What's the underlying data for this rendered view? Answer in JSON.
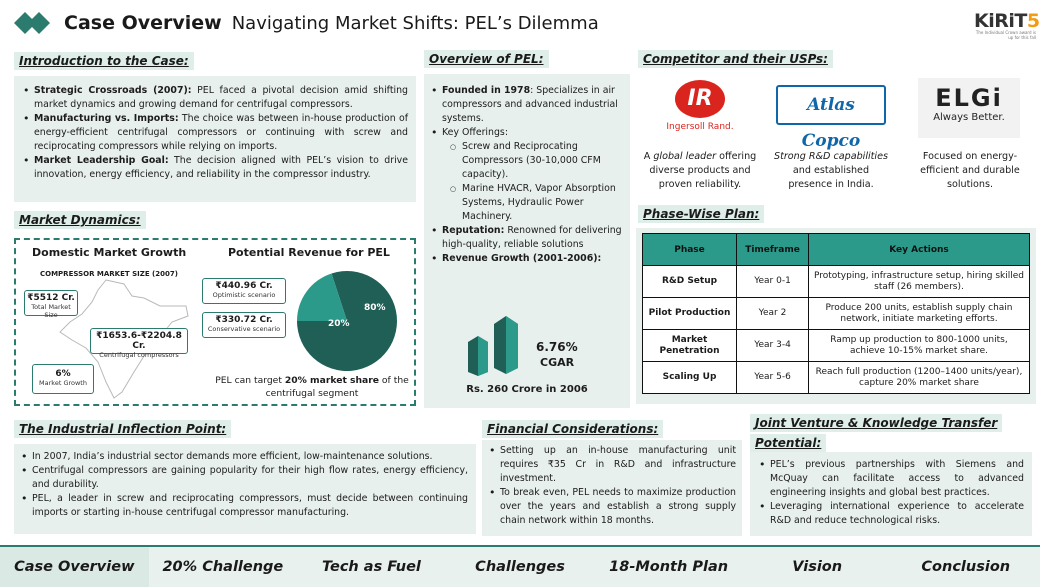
{
  "header": {
    "title_bold": "Case Overview",
    "title_rest": "Navigating Market Shifts: PEL’s Dilemma",
    "logo_text_a": "KiRiT",
    "logo_text_b": "5.0",
    "logo_tagline": "The Individual Crown award is up for this fall"
  },
  "intro": {
    "heading": "Introduction to the Case:",
    "items": [
      {
        "bold": "Strategic Crossroads (2007):",
        "text": " PEL faced a pivotal decision amid shifting market dynamics and growing demand for centrifugal compressors."
      },
      {
        "bold": "Manufacturing vs. Imports:",
        "text": " The choice was between in-house production of energy-efficient centrifugal compressors or continuing with screw and reciprocating compressors while relying on imports."
      },
      {
        "bold": "Market Leadership Goal:",
        "text": " The decision aligned with PEL’s vision to drive innovation, energy efficiency, and reliability in the compressor industry."
      }
    ]
  },
  "market": {
    "heading": "Market Dynamics:",
    "domestic_title": "Domestic Market Growth",
    "revenue_title": "Potential Revenue for PEL",
    "map_label": "COMPRESSOR MARKET SIZE (2007)",
    "total_value": "₹5512 Cr.",
    "total_label": "Total Market Size",
    "centrifugal_value": "₹1653.6-₹2204.8 Cr.",
    "centrifugal_label": "Centrifugal compressors",
    "growth_value": "6%",
    "growth_label": "Market Growth",
    "optimistic_value": "₹440.96 Cr.",
    "optimistic_label": "Optimistic scenario",
    "conservative_value": "₹330.72 Cr.",
    "conservative_label": "Conservative scenario",
    "pie_small": "20%",
    "pie_large": "80%",
    "pie_share": 0.2,
    "target_pre": "PEL can target ",
    "target_bold": "20% market share",
    "target_post": " of the centrifugal segment"
  },
  "overview": {
    "heading": "Overview of PEL:",
    "founded_bold": "Founded in 1978",
    "founded_text": ": Specializes in air compressors and advanced industrial systems.",
    "offerings_label": "Key Offerings:",
    "offerings": [
      "Screw and Reciprocating Compressors (30-10,000 CFM capacity).",
      "Marine HVACR, Vapor Absorption Systems, Hydraulic Power Machinery."
    ],
    "reputation_bold": "Reputation:",
    "reputation_text": " Renowned for delivering high-quality, reliable solutions",
    "growth_bold": "Revenue Growth (2001-2006):",
    "cagr_value": "6.76%",
    "cagr_label": "CGAR",
    "revenue_2006": "Rs. 260 Crore in 2006"
  },
  "competitors": {
    "heading": "Competitor and their USPs:",
    "ir_logo": "IR",
    "ir_name": "Ingersoll Rand.",
    "atlas_name": "Atlas Copco",
    "elgi_name": "ELGi",
    "elgi_tag": "Always Better.",
    "ir_pre": "A ",
    "ir_em": "global leader",
    "ir_post": " offering diverse products and proven reliability.",
    "atlas_em": "Strong R&D capabilities",
    "atlas_post": " and established presence in India.",
    "elgi_text": "Focused on energy-efficient and durable solutions."
  },
  "plan": {
    "heading": "Phase-Wise Plan:",
    "columns": [
      "Phase",
      "Timeframe",
      "Key Actions"
    ],
    "rows": [
      {
        "phase": "R&D Setup",
        "time": "Year 0-1",
        "actions": "Prototyping, infrastructure setup, hiring skilled staff (26 members)."
      },
      {
        "phase": "Pilot Production",
        "time": "Year 2",
        "actions": "Produce 200 units, establish supply chain network, initiate marketing efforts."
      },
      {
        "phase": "Market Penetration",
        "time": "Year 3-4",
        "actions": "Ramp up production to 800-1000 units, achieve 10-15% market share."
      },
      {
        "phase": "Scaling Up",
        "time": "Year 5-6",
        "actions": "Reach full production (1200–1400 units/year), capture 20% market share"
      }
    ]
  },
  "inflection": {
    "heading": "The Industrial Inflection Point:",
    "items": [
      "In 2007, India’s industrial sector demands more efficient, low-maintenance solutions.",
      "Centrifugal compressors are gaining popularity for their high flow rates, energy efficiency, and durability.",
      "PEL, a leader in screw and reciprocating compressors, must decide between continuing imports or starting in-house centrifugal compressor manufacturing."
    ]
  },
  "financial": {
    "heading": "Financial Considerations:",
    "items": [
      "Setting up an in-house manufacturing unit requires ₹35 Cr in R&D and infrastructure investment.",
      "To break even, PEL needs to maximize production over the years and establish a strong supply chain network within 18 months."
    ]
  },
  "joint": {
    "heading_1": "Joint Venture & Knowledge Transfer",
    "heading_2": "Potential:",
    "items": [
      "PEL’s previous partnerships with Siemens and McQuay can facilitate access to advanced engineering insights and global best practices.",
      "Leveraging international experience to accelerate R&D and reduce technological risks."
    ]
  },
  "footer": {
    "tabs": [
      "Case Overview",
      "20% Challenge",
      "Tech as Fuel",
      "Challenges",
      "18-Month Plan",
      "Vision",
      "Conclusion"
    ]
  },
  "colors": {
    "teal": "#2b7c6f",
    "teal_light": "#e8f0ee",
    "teal_dark": "#1f5f56",
    "ir_red": "#d9251d",
    "atlas_blue": "#0f66a8"
  }
}
